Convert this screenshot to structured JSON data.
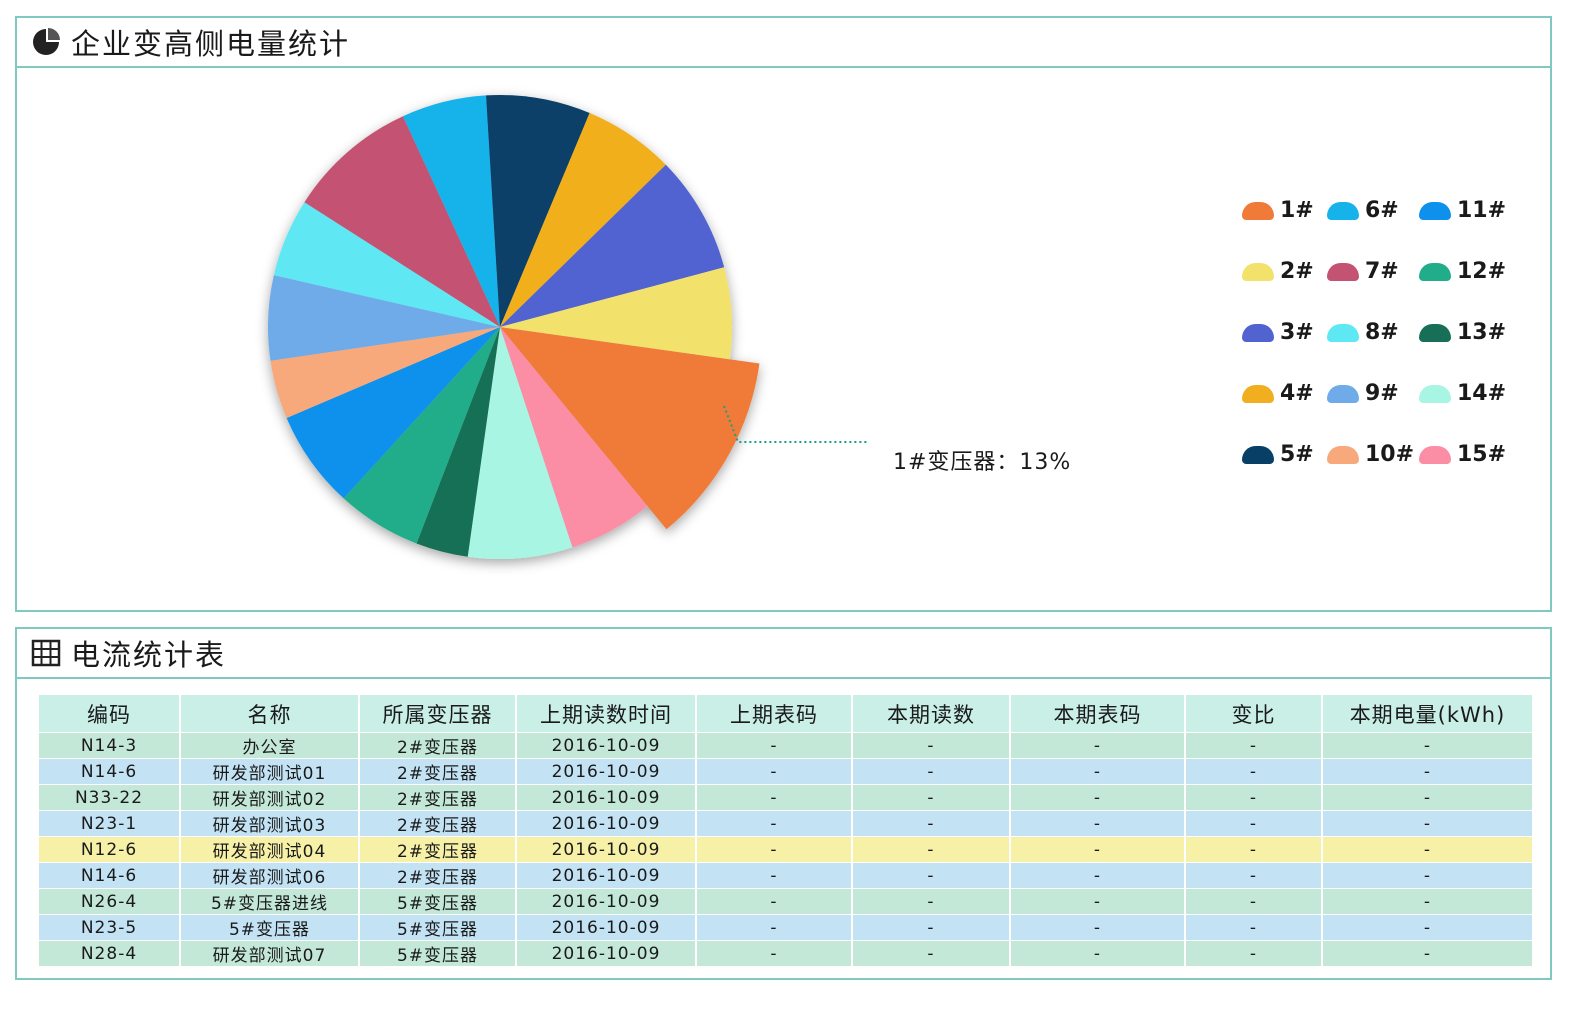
{
  "pie_panel": {
    "title": "企业变高侧电量统计",
    "icon": "pie-chart-icon"
  },
  "table_panel": {
    "title": "电流统计表",
    "icon": "table-icon"
  },
  "chart_data": {
    "type": "pie",
    "title": "企业变高侧电量统计",
    "highlighted_slice": "1#",
    "callout": "1#变压器：13%",
    "slices": [
      {
        "label": "1#",
        "value": 13,
        "color": "#f07a38"
      },
      {
        "label": "15#",
        "value": 6.5,
        "color": "#fb8da4"
      },
      {
        "label": "14#",
        "value": 8,
        "color": "#a7f5e2"
      },
      {
        "label": "13#",
        "value": 4,
        "color": "#176f57"
      },
      {
        "label": "12#",
        "value": 6.5,
        "color": "#22ad8a"
      },
      {
        "label": "11#",
        "value": 7.5,
        "color": "#0d91ec"
      },
      {
        "label": "10#",
        "value": 4.5,
        "color": "#f7a97c"
      },
      {
        "label": "9#",
        "value": 6.5,
        "color": "#6eabe8"
      },
      {
        "label": "8#",
        "value": 6,
        "color": "#5ee8f4"
      },
      {
        "label": "7#",
        "value": 10,
        "color": "#c45273"
      },
      {
        "label": "6#",
        "value": 6.5,
        "color": "#15b3ea"
      },
      {
        "label": "5#",
        "value": 8,
        "color": "#073f67"
      },
      {
        "label": "4#",
        "value": 7,
        "color": "#f1af1f"
      },
      {
        "label": "3#",
        "value": 9,
        "color": "#5162d1"
      },
      {
        "label": "2#",
        "value": 7,
        "color": "#f2e26c"
      }
    ],
    "legend": [
      {
        "label": "1#",
        "color": "#f07a38"
      },
      {
        "label": "6#",
        "color": "#15b3ea"
      },
      {
        "label": "11#",
        "color": "#0d91ec"
      },
      {
        "label": "2#",
        "color": "#f2e26c"
      },
      {
        "label": "7#",
        "color": "#c45273"
      },
      {
        "label": "12#",
        "color": "#22ad8a"
      },
      {
        "label": "3#",
        "color": "#5162d1"
      },
      {
        "label": "8#",
        "color": "#5ee8f4"
      },
      {
        "label": "13#",
        "color": "#176f57"
      },
      {
        "label": "4#",
        "color": "#f1af1f"
      },
      {
        "label": "9#",
        "color": "#6eabe8"
      },
      {
        "label": "14#",
        "color": "#a7f5e2"
      },
      {
        "label": "5#",
        "color": "#073f67"
      },
      {
        "label": "10#",
        "color": "#f7a97c"
      },
      {
        "label": "15#",
        "color": "#fb8da4"
      }
    ]
  },
  "table": {
    "headers": [
      "编码",
      "名称",
      "所属变压器",
      "上期读数时间",
      "上期表码",
      "本期读数",
      "本期表码",
      "变比",
      "本期电量(kWh)"
    ],
    "rows": [
      {
        "style": "green",
        "cells": [
          "N14-3",
          "办公室",
          "2#变压器",
          "2016-10-09",
          "-",
          "-",
          "-",
          "-",
          "-"
        ]
      },
      {
        "style": "blue",
        "cells": [
          "N14-6",
          "研发部测试01",
          "2#变压器",
          "2016-10-09",
          "-",
          "-",
          "-",
          "-",
          "-"
        ]
      },
      {
        "style": "green",
        "cells": [
          "N33-22",
          "研发部测试02",
          "2#变压器",
          "2016-10-09",
          "-",
          "-",
          "-",
          "-",
          "-"
        ]
      },
      {
        "style": "blue",
        "cells": [
          "N23-1",
          "研发部测试03",
          "2#变压器",
          "2016-10-09",
          "-",
          "-",
          "-",
          "-",
          "-"
        ]
      },
      {
        "style": "yellow",
        "cells": [
          "N12-6",
          "研发部测试04",
          "2#变压器",
          "2016-10-09",
          "-",
          "-",
          "-",
          "-",
          "-"
        ]
      },
      {
        "style": "blue",
        "cells": [
          "N14-6",
          "研发部测试06",
          "2#变压器",
          "2016-10-09",
          "-",
          "-",
          "-",
          "-",
          "-"
        ]
      },
      {
        "style": "green",
        "cells": [
          "N26-4",
          "5#变压器进线",
          "5#变压器",
          "2016-10-09",
          "-",
          "-",
          "-",
          "-",
          "-"
        ]
      },
      {
        "style": "blue",
        "cells": [
          "N23-5",
          "5#变压器",
          "5#变压器",
          "2016-10-09",
          "-",
          "-",
          "-",
          "-",
          "-"
        ]
      },
      {
        "style": "green",
        "cells": [
          "N28-4",
          "研发部测试07",
          "5#变压器",
          "2016-10-09",
          "-",
          "-",
          "-",
          "-",
          "-"
        ]
      }
    ]
  }
}
